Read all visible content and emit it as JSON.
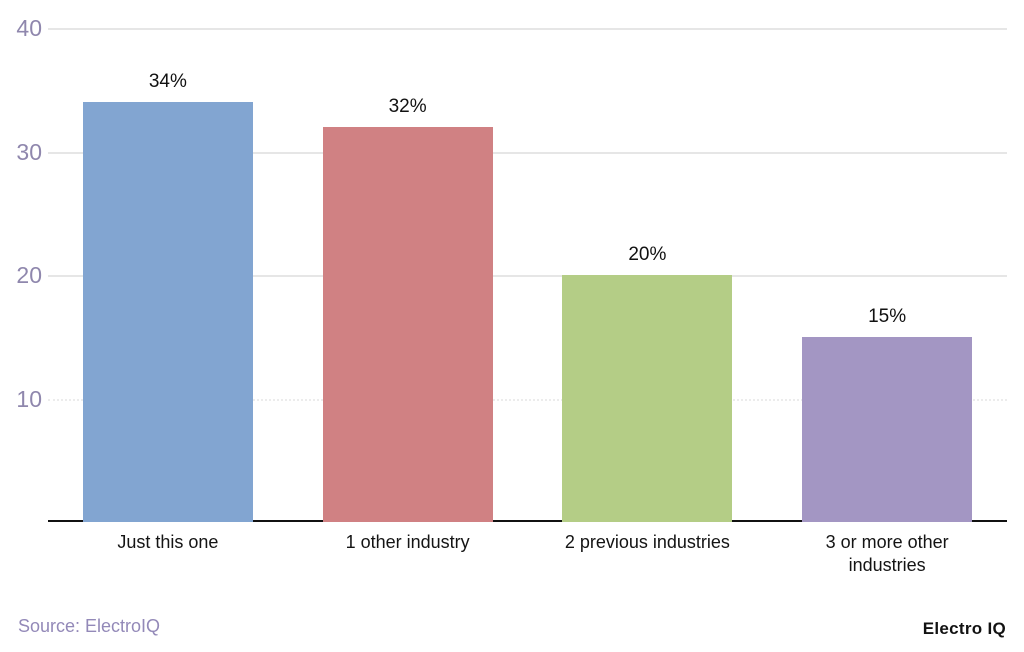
{
  "chart_data": {
    "type": "bar",
    "title": "",
    "categories": [
      "Just this one",
      "1 other industry",
      "2 previous industries",
      "3 or more other industries"
    ],
    "values": [
      34,
      32,
      20,
      15
    ],
    "value_labels": [
      "34%",
      "32%",
      "20%",
      "15%"
    ],
    "bar_colors": [
      "#82a5d1",
      "#d08183",
      "#b4cd86",
      "#a396c3"
    ],
    "xlabel": "",
    "ylabel": "",
    "ylim": [
      0,
      40
    ],
    "y_ticks": [
      {
        "value": 10,
        "label": "10",
        "dotted": true
      },
      {
        "value": 20,
        "label": "20",
        "dotted": false
      },
      {
        "value": 30,
        "label": "30",
        "dotted": false
      },
      {
        "value": 40,
        "label": "40",
        "dotted": false
      }
    ],
    "grid": "on",
    "legend": "none"
  },
  "colors": {
    "gridline": "#e6e6e6",
    "gridline_dotted": "#ececec",
    "axis_tick_text": "#8f87ad",
    "axis_baseline": "#111111",
    "bar_label_text": "#111111",
    "category_text": "#141414",
    "source_text": "#9389b8",
    "brand_text": "#121212"
  },
  "footer": {
    "source_label": "Source: ElectroIQ",
    "brand_label": "Electro IQ"
  }
}
